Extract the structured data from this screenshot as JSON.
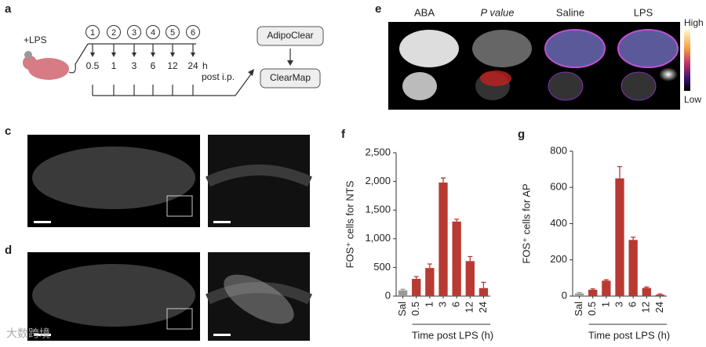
{
  "panels": {
    "a": {
      "panel": "a",
      "treatment": "+LPS",
      "steps": [
        "1",
        "2",
        "3",
        "4",
        "5",
        "6"
      ],
      "times": [
        "0.5",
        "1",
        "3",
        "6",
        "12",
        "24"
      ],
      "unit": "h",
      "note": "post i.p.",
      "boxes": [
        "AdipoClear",
        "ClearMap"
      ]
    },
    "c": {
      "panel": "c"
    },
    "d": {
      "panel": "d"
    },
    "e": {
      "panel": "e",
      "columns": [
        "ABA",
        "P value",
        "Saline",
        "LPS"
      ],
      "scale": [
        "High",
        "Low"
      ]
    }
  },
  "watermark": "大数跨境",
  "chart_data": [
    {
      "type": "bar",
      "panel": "f",
      "ylabel": "FOS⁺ cells for NTS",
      "xlabel": "Time post LPS (h)",
      "categories": [
        "Sal",
        "0.5",
        "1",
        "3",
        "6",
        "12",
        "24"
      ],
      "values": [
        100,
        300,
        490,
        1980,
        1300,
        610,
        140
      ],
      "errors": [
        20,
        40,
        70,
        80,
        40,
        80,
        100
      ],
      "colors": [
        "#9a9a9a",
        "#b83a33",
        "#b83a33",
        "#b83a33",
        "#b83a33",
        "#b83a33",
        "#b83a33"
      ],
      "ylim": [
        0,
        2500
      ],
      "yticks": [
        0,
        500,
        {
          "value": 1000,
          "label": "1,000"
        },
        {
          "value": 1500,
          "label": "1,500"
        },
        {
          "value": 2000,
          "label": "2,000"
        },
        {
          "value": 2500,
          "label": "2,500"
        }
      ]
    },
    {
      "type": "bar",
      "panel": "g",
      "ylabel": "FOS⁺ cells for AP",
      "xlabel": "Time post LPS (h)",
      "categories": [
        "Sal",
        "0.5",
        "1",
        "3",
        "6",
        "12",
        "24"
      ],
      "values": [
        15,
        35,
        85,
        650,
        310,
        45,
        8
      ],
      "errors": [
        5,
        5,
        5,
        65,
        15,
        5,
        4
      ],
      "colors": [
        "#9a9a9a",
        "#b83a33",
        "#b83a33",
        "#b83a33",
        "#b83a33",
        "#b83a33",
        "#b83a33"
      ],
      "ylim": [
        0,
        800
      ],
      "yticks": [
        0,
        200,
        400,
        600,
        800
      ]
    }
  ]
}
